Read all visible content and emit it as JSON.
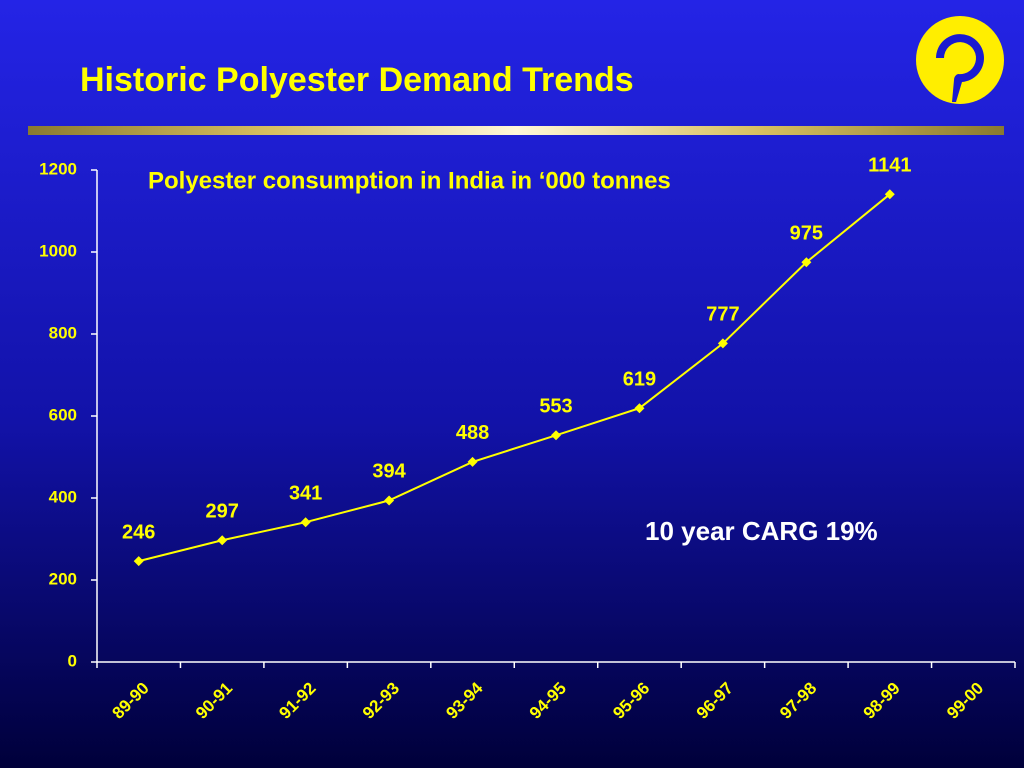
{
  "chart_data": {
    "type": "line",
    "title": "Historic Polyester Demand Trends",
    "subtitle": "Polyester consumption in India in ‘000 tonnes",
    "annotation": "10 year CARG 19%",
    "categories": [
      "89-90",
      "90-91",
      "91-92",
      "92-93",
      "93-94",
      "94-95",
      "95-96",
      "96-97",
      "97-98",
      "98-99",
      "99-00"
    ],
    "values": [
      246,
      297,
      341,
      394,
      488,
      553,
      619,
      777,
      975,
      1141,
      null
    ],
    "color": "#ffff00",
    "ylim": [
      0,
      1200
    ],
    "yticks": [
      0,
      200,
      400,
      600,
      800,
      1000,
      1200
    ]
  }
}
